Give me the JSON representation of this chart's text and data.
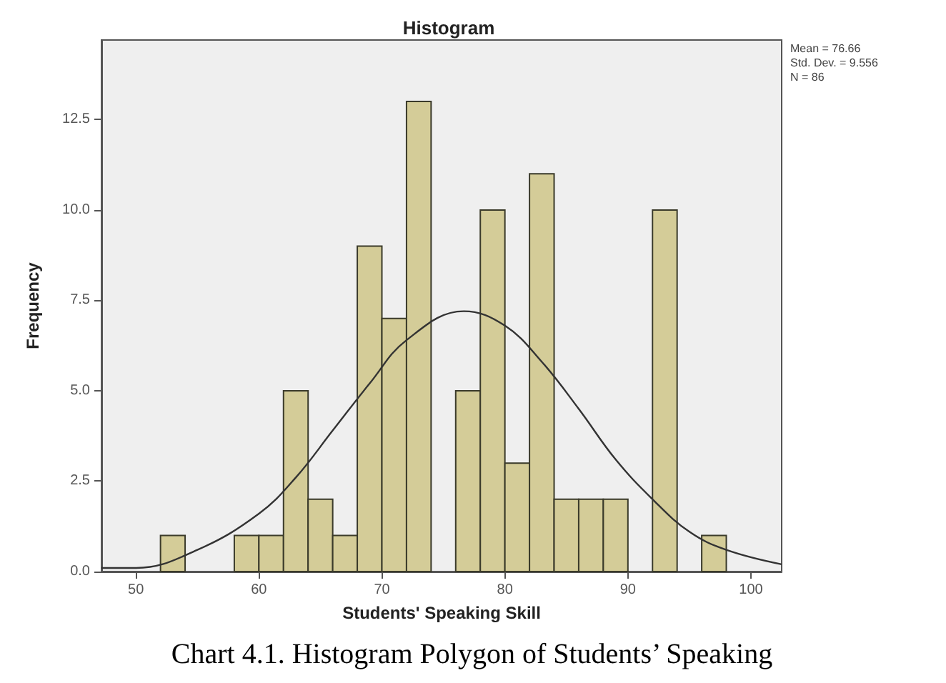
{
  "chart_data": {
    "type": "histogram",
    "title": "Histogram",
    "xlabel": "Students' Speaking Skill",
    "ylabel": "Frequency",
    "xlim": [
      47.2,
      102.5
    ],
    "xticks": [
      50,
      60,
      70,
      80,
      90,
      100
    ],
    "ylim": [
      0,
      14.7
    ],
    "yticks": [
      {
        "value": 0,
        "label": "0.0"
      },
      {
        "value": 2.5,
        "label": "2.5"
      },
      {
        "value": 5,
        "label": "5.0"
      },
      {
        "value": 7.5,
        "label": "7.5"
      },
      {
        "value": 10,
        "label": "10.0"
      },
      {
        "value": 12.5,
        "label": "12.5"
      }
    ],
    "grid": false,
    "series": [
      {
        "color": "#d4cc98",
        "bins": [
          52,
          54,
          56,
          58,
          60,
          62,
          64,
          66,
          68,
          70,
          72,
          74,
          76,
          78,
          80,
          82,
          84,
          86,
          88,
          90,
          92,
          94,
          96,
          98
        ],
        "values": [
          1,
          0,
          0,
          1,
          1,
          5,
          2,
          1,
          9,
          7,
          13,
          0,
          5,
          10,
          3,
          11,
          2,
          2,
          2,
          0,
          10,
          0,
          1
        ]
      },
      {
        "type": "line",
        "color": "#333333",
        "marker": "none",
        "x": [
          47.2,
          50,
          55,
          60,
          63,
          66,
          69,
          72,
          76.66,
          80,
          83,
          86,
          89,
          92,
          95,
          98,
          102.5
        ],
        "values": [
          0.1,
          0.1,
          0.6,
          1.6,
          2.6,
          3.9,
          5.2,
          6.4,
          7.2,
          6.8,
          5.8,
          4.5,
          3.1,
          2.0,
          1.1,
          0.6,
          0.2
        ]
      }
    ],
    "annotations": [
      "Mean = 76.66",
      "Std. Dev. = 9.556",
      "N = 86",
      "Chart 4.1. Histogram Polygon of Students’ Speaking"
    ]
  }
}
